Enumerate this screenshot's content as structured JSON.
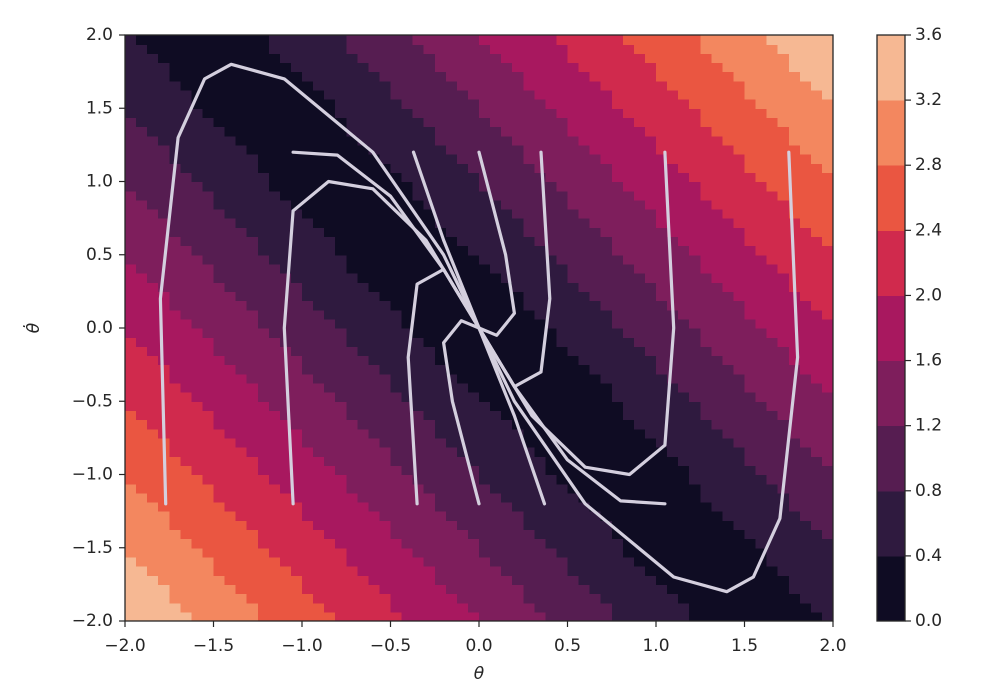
{
  "chart_data": {
    "type": "contour",
    "x_label": "θ",
    "y_label": "θ̇",
    "xlim": [
      -2,
      2
    ],
    "ylim": [
      -2,
      2
    ],
    "xticks": [
      {
        "value": -2,
        "label": "−2.0"
      },
      {
        "value": -1.5,
        "label": "−1.5"
      },
      {
        "value": -1,
        "label": "−1.0"
      },
      {
        "value": -0.5,
        "label": "−0.5"
      },
      {
        "value": 0,
        "label": "0.0"
      },
      0.5,
      {
        "value": 1,
        "label": "1.0"
      },
      1.5,
      {
        "value": 2,
        "label": "2.0"
      }
    ],
    "yticks": [
      {
        "value": -2,
        "label": "−2.0"
      },
      {
        "value": -1.5,
        "label": "−1.5"
      },
      {
        "value": -1,
        "label": "−1.0"
      },
      {
        "value": -0.5,
        "label": "−0.5"
      },
      {
        "value": 0,
        "label": "0.0"
      },
      0.5,
      {
        "value": 1,
        "label": "1.0"
      },
      1.5,
      {
        "value": 2,
        "label": "2.0"
      }
    ],
    "grid_x": [
      -2,
      -1.5,
      -1,
      -0.5,
      0,
      0.5,
      1,
      1.5,
      2
    ],
    "grid_y": [
      -2,
      -1.5,
      -1,
      -0.5,
      0,
      0.5,
      1,
      1.5,
      2
    ],
    "z": [
      [
        3.6,
        3.1,
        2.6,
        2.1,
        1.6,
        1.1,
        0.6,
        0.1,
        0.4
      ],
      [
        3.2,
        2.7,
        2.2,
        1.7,
        1.2,
        0.7,
        0.2,
        0.3,
        0.8
      ],
      [
        2.8,
        2.3,
        1.8,
        1.3,
        0.8,
        0.3,
        0.2,
        0.7,
        1.2
      ],
      [
        2.4,
        1.9,
        1.4,
        0.9,
        0.4,
        0.1,
        0.6,
        1.1,
        1.6
      ],
      [
        2.0,
        1.5,
        1.0,
        0.5,
        0.0,
        0.5,
        1.0,
        1.5,
        2.0
      ],
      [
        1.6,
        1.1,
        0.6,
        0.1,
        0.4,
        0.9,
        1.4,
        1.9,
        2.4
      ],
      [
        1.2,
        0.7,
        0.2,
        0.3,
        0.8,
        1.3,
        1.8,
        2.3,
        2.8
      ],
      [
        0.8,
        0.3,
        0.2,
        0.7,
        1.2,
        1.7,
        2.2,
        2.7,
        3.2
      ],
      [
        0.4,
        0.1,
        0.6,
        1.1,
        1.6,
        2.1,
        2.6,
        3.1,
        3.6
      ]
    ],
    "colorbar": {
      "lim": [
        0,
        3.6
      ],
      "ticks": [
        {
          "value": 0,
          "label": "0.0"
        },
        0.4,
        0.8,
        1.2,
        1.6,
        {
          "value": 2,
          "label": "2.0"
        },
        2.4,
        2.8,
        3.2,
        3.6
      ],
      "colors": [
        "#0f0c23",
        "#2f1a3f",
        "#561d51",
        "#7e1e5c",
        "#a8185f",
        "#d02a4d",
        "#ea5641",
        "#f3875f",
        "#f6b893"
      ]
    },
    "line_color": "#d4cfde",
    "trajectories": [
      {
        "x": [
          -1.77,
          -1.8,
          -1.7,
          -1.55,
          -1.4,
          -1.1,
          -0.6,
          -0.2,
          0
        ],
        "y": [
          -1.2,
          0.2,
          1.3,
          1.7,
          1.8,
          1.7,
          1.2,
          0.5,
          0
        ]
      },
      {
        "x": [
          1.75,
          1.8,
          1.7,
          1.55,
          1.4,
          1.1,
          0.6,
          0.2,
          0
        ],
        "y": [
          1.2,
          -0.2,
          -1.3,
          -1.7,
          -1.8,
          -1.7,
          -1.2,
          -0.5,
          0
        ]
      },
      {
        "x": [
          -1.05,
          -1.1,
          -1.05,
          -0.85,
          -0.6,
          -0.3,
          0
        ],
        "y": [
          -1.2,
          0,
          0.8,
          1.0,
          0.95,
          0.6,
          0
        ]
      },
      {
        "x": [
          1.05,
          1.1,
          1.05,
          0.85,
          0.6,
          0.3,
          0
        ],
        "y": [
          1.2,
          0,
          -0.8,
          -1.0,
          -0.95,
          -0.6,
          0
        ]
      },
      {
        "x": [
          -1.05,
          -0.8,
          -0.5,
          -0.2,
          0
        ],
        "y": [
          1.2,
          1.18,
          0.9,
          0.4,
          0
        ]
      },
      {
        "x": [
          1.05,
          0.8,
          0.5,
          0.2,
          0
        ],
        "y": [
          -1.2,
          -1.18,
          -0.9,
          -0.4,
          0
        ]
      },
      {
        "x": [
          -0.35,
          -0.4,
          -0.35,
          -0.2,
          0
        ],
        "y": [
          -1.2,
          -0.2,
          0.3,
          0.4,
          0
        ]
      },
      {
        "x": [
          0.35,
          0.4,
          0.35,
          0.2,
          0
        ],
        "y": [
          1.2,
          0.2,
          -0.3,
          -0.4,
          0
        ]
      },
      {
        "x": [
          -0.37,
          -0.2,
          0
        ],
        "y": [
          1.2,
          0.6,
          0
        ]
      },
      {
        "x": [
          0.37,
          0.2,
          0
        ],
        "y": [
          -1.2,
          -0.6,
          0
        ]
      },
      {
        "x": [
          0,
          0.15,
          0.2,
          0.1,
          0
        ],
        "y": [
          1.2,
          0.5,
          0.1,
          -0.05,
          0
        ]
      },
      {
        "x": [
          0,
          -0.15,
          -0.2,
          -0.1,
          0
        ],
        "y": [
          -1.2,
          -0.5,
          -0.1,
          0.05,
          0
        ]
      }
    ]
  }
}
